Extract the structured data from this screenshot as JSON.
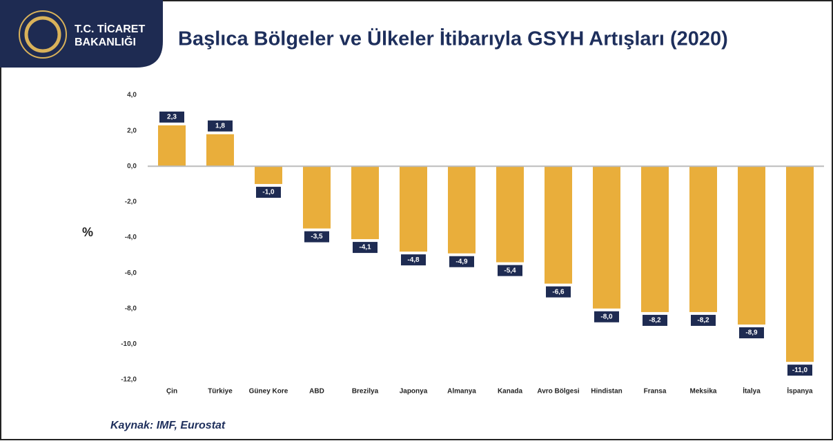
{
  "header": {
    "logo_line1": "T.C. TİCARET",
    "logo_line2": "BAKANLIĞI"
  },
  "chart_data": {
    "type": "bar",
    "title": "Başlıca Bölgeler ve Ülkeler İtibarıyla GSYH Artışları (2020)",
    "y_label": "%",
    "source": "Kaynak: IMF, Eurostat",
    "categories": [
      "Çin",
      "Türkiye",
      "Güney Kore",
      "ABD",
      "Brezilya",
      "Japonya",
      "Almanya",
      "Kanada",
      "Avro Bölgesi",
      "Hindistan",
      "Fransa",
      "Meksika",
      "İtalya",
      "İspanya"
    ],
    "values": [
      2.3,
      1.8,
      -1.0,
      -3.5,
      -4.1,
      -4.8,
      -4.9,
      -5.4,
      -6.6,
      -8.0,
      -8.2,
      -8.2,
      -8.9,
      -11.0
    ],
    "value_labels": [
      "2,3",
      "1,8",
      "-1,0",
      "-3,5",
      "-4,1",
      "-4,8",
      "-4,9",
      "-5,4",
      "-6,6",
      "-8,0",
      "-8,2",
      "-8,2",
      "-8,9",
      "-11,0"
    ],
    "color": "#e9ae3b",
    "ylim": [
      -12,
      4
    ],
    "yticks": [
      {
        "value": 4,
        "label": "4,0"
      },
      {
        "value": 2,
        "label": "2,0"
      },
      {
        "value": 0,
        "label": "0,0"
      },
      {
        "value": -2,
        "label": "-2,0"
      },
      {
        "value": -4,
        "label": "-4,0"
      },
      {
        "value": -6,
        "label": "-6,0"
      },
      {
        "value": -8,
        "label": "-8,0"
      },
      {
        "value": -10,
        "label": "-10,0"
      },
      {
        "value": -12,
        "label": "-12,0"
      }
    ]
  }
}
